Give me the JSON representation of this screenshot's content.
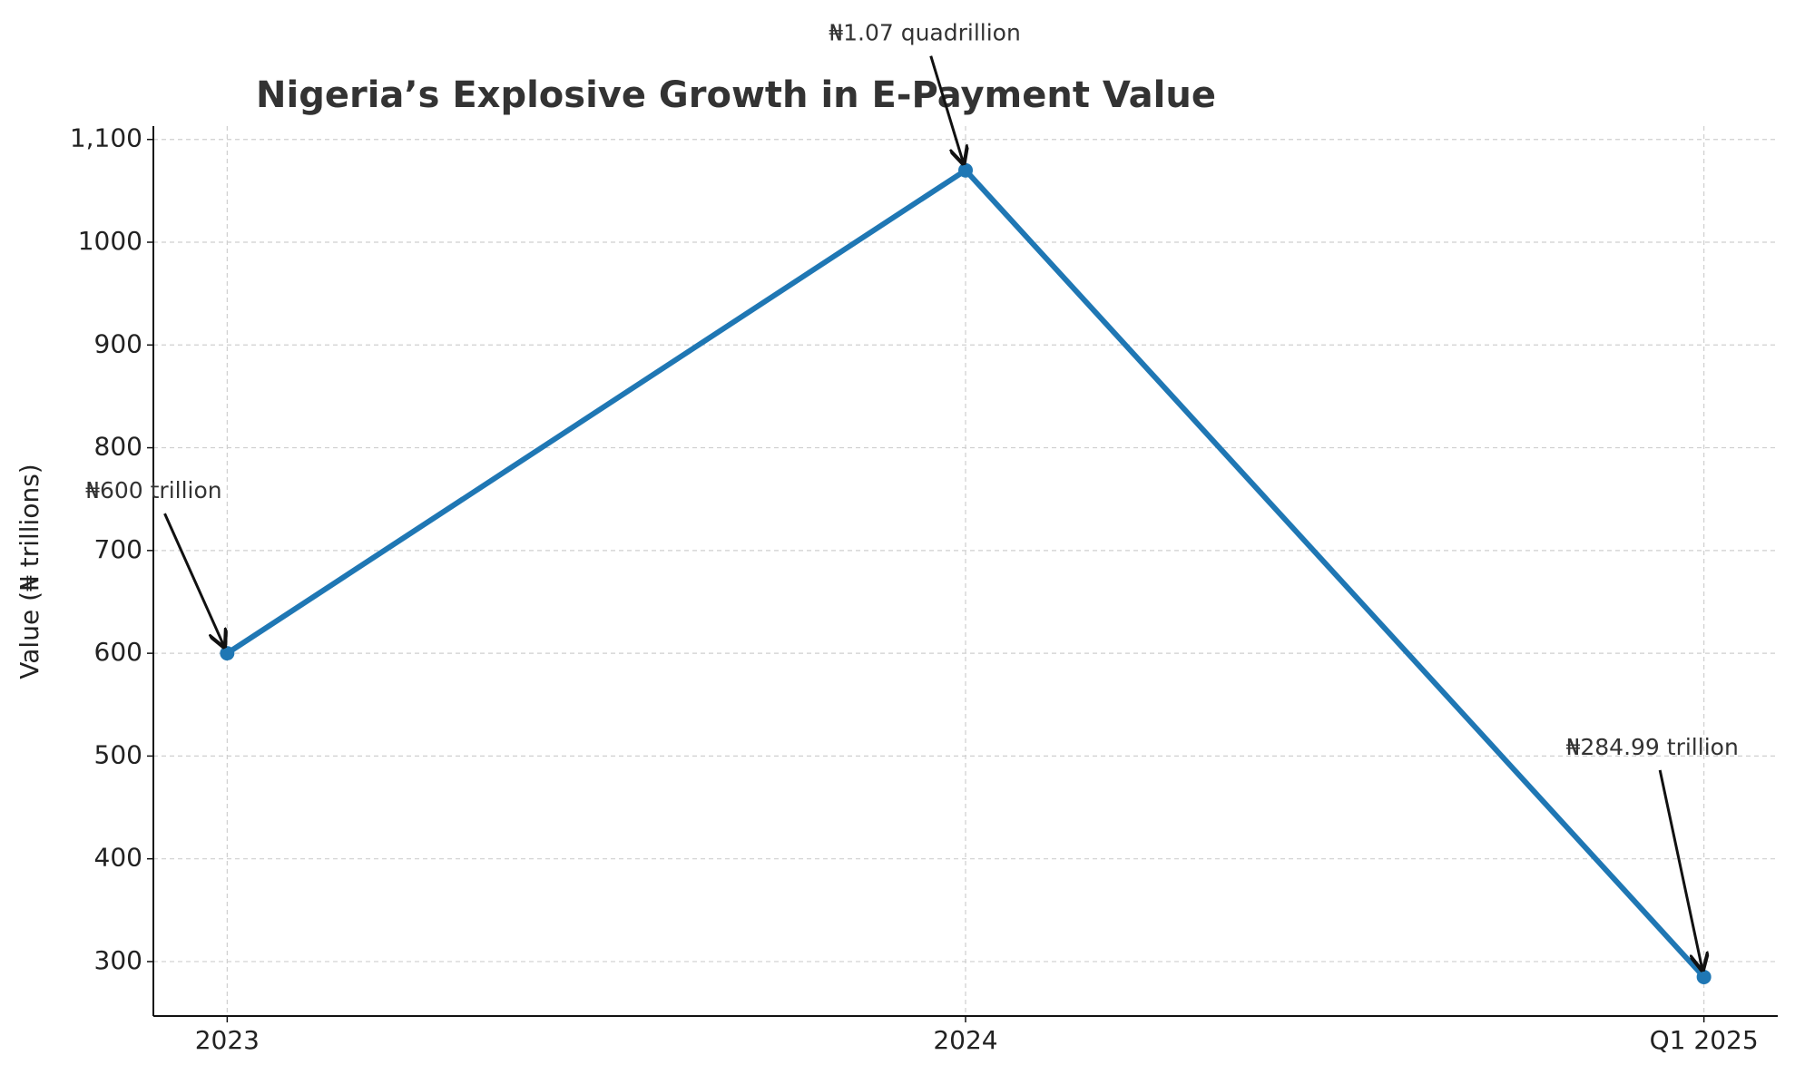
{
  "chart_data": {
    "type": "line",
    "title": "Nigeria’s Explosive Growth in E-Payment Value",
    "y_label": "Value (₦ trillions)",
    "categories": [
      "2023",
      "2024",
      "Q1 2025"
    ],
    "values": [
      600,
      1070,
      284.99
    ],
    "annotations": [
      "₦600 trillion",
      "₦1.07 quadrillion",
      "₦284.99 trillion"
    ],
    "color": "#1f77b4",
    "ylim": [
      247,
      1113
    ],
    "yticks": [
      300,
      400,
      500,
      600,
      700,
      800,
      900,
      1000,
      {
        "value": 1100,
        "label": "1,100"
      }
    ],
    "grid": true
  }
}
